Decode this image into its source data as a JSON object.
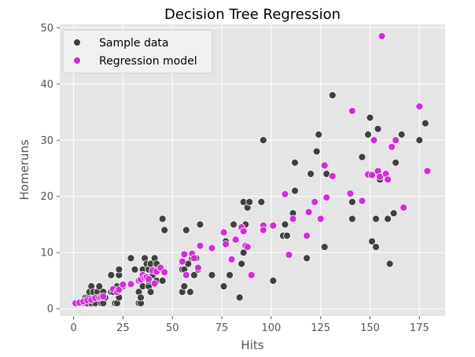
{
  "chart_data": {
    "type": "scatter",
    "title": "Decision Tree Regression",
    "xlabel": "Hits",
    "ylabel": "Homeruns",
    "xlim": [
      -7,
      188
    ],
    "ylim": [
      -1.3,
      50.6
    ],
    "x_ticks": [
      0,
      25,
      50,
      75,
      100,
      125,
      150,
      175
    ],
    "y_ticks": [
      0,
      10,
      20,
      30,
      40,
      50
    ],
    "grid": true,
    "legend_position": "top-left",
    "series": [
      {
        "name": "Sample data",
        "color": "#404040",
        "points": [
          [
            1,
            1
          ],
          [
            2,
            1
          ],
          [
            3,
            1
          ],
          [
            4,
            1
          ],
          [
            5,
            1
          ],
          [
            6,
            1
          ],
          [
            6,
            2
          ],
          [
            7,
            1
          ],
          [
            7,
            2
          ],
          [
            8,
            2
          ],
          [
            8,
            3
          ],
          [
            9,
            1
          ],
          [
            9,
            4
          ],
          [
            10,
            2
          ],
          [
            10,
            3
          ],
          [
            11,
            1
          ],
          [
            12,
            2
          ],
          [
            12,
            3
          ],
          [
            13,
            4
          ],
          [
            14,
            1
          ],
          [
            14,
            2
          ],
          [
            15,
            1
          ],
          [
            15,
            3
          ],
          [
            16,
            2
          ],
          [
            19,
            3
          ],
          [
            19,
            6
          ],
          [
            20,
            3
          ],
          [
            21,
            1
          ],
          [
            22,
            1
          ],
          [
            22,
            4
          ],
          [
            23,
            2
          ],
          [
            23,
            6
          ],
          [
            23,
            7
          ],
          [
            25,
            4
          ],
          [
            29,
            9
          ],
          [
            31,
            7
          ],
          [
            33,
            1
          ],
          [
            33,
            3
          ],
          [
            34,
            1
          ],
          [
            34,
            2
          ],
          [
            35,
            4
          ],
          [
            35,
            6
          ],
          [
            35,
            7
          ],
          [
            36,
            9
          ],
          [
            37,
            8
          ],
          [
            38,
            4
          ],
          [
            38,
            5
          ],
          [
            38,
            7
          ],
          [
            39,
            3
          ],
          [
            39,
            8
          ],
          [
            40,
            6
          ],
          [
            41,
            7
          ],
          [
            41,
            9
          ],
          [
            42,
            5
          ],
          [
            42,
            8
          ],
          [
            45,
            5
          ],
          [
            45,
            16
          ],
          [
            46,
            14
          ],
          [
            55,
            3
          ],
          [
            55,
            7
          ],
          [
            56,
            4
          ],
          [
            56,
            7
          ],
          [
            57,
            14
          ],
          [
            58,
            8
          ],
          [
            59,
            3
          ],
          [
            60,
            9
          ],
          [
            61,
            6
          ],
          [
            62,
            9
          ],
          [
            63,
            7
          ],
          [
            64,
            15
          ],
          [
            70,
            6
          ],
          [
            76,
            4
          ],
          [
            77,
            12
          ],
          [
            79,
            6
          ],
          [
            81,
            15
          ],
          [
            84,
            2
          ],
          [
            85,
            8
          ],
          [
            86,
            10
          ],
          [
            86,
            19
          ],
          [
            87,
            15
          ],
          [
            88,
            18
          ],
          [
            89,
            19
          ],
          [
            95,
            19
          ],
          [
            96,
            30
          ],
          [
            101,
            5
          ],
          [
            106,
            13
          ],
          [
            107,
            15
          ],
          [
            108,
            13
          ],
          [
            111,
            17
          ],
          [
            112,
            21
          ],
          [
            112,
            26
          ],
          [
            118,
            9
          ],
          [
            120,
            24
          ],
          [
            123,
            28
          ],
          [
            124,
            31
          ],
          [
            127,
            11
          ],
          [
            128,
            24
          ],
          [
            131,
            38
          ],
          [
            141,
            16
          ],
          [
            141,
            19
          ],
          [
            146,
            27
          ],
          [
            149,
            31
          ],
          [
            150,
            34
          ],
          [
            151,
            12
          ],
          [
            153,
            11
          ],
          [
            153,
            16
          ],
          [
            154,
            32
          ],
          [
            155,
            23
          ],
          [
            159,
            16
          ],
          [
            160,
            8
          ],
          [
            162,
            17
          ],
          [
            163,
            26
          ],
          [
            166,
            31
          ],
          [
            175,
            30
          ],
          [
            178,
            33
          ]
        ]
      },
      {
        "name": "Regression model",
        "color": "#d42cd8",
        "points": [
          [
            1,
            1
          ],
          [
            3,
            1.1
          ],
          [
            5,
            1.3
          ],
          [
            7,
            1.5
          ],
          [
            9,
            1.6
          ],
          [
            11,
            1.9
          ],
          [
            13,
            2
          ],
          [
            14,
            2.1
          ],
          [
            15,
            2.2
          ],
          [
            20,
            3.5
          ],
          [
            22,
            3
          ],
          [
            23,
            3.4
          ],
          [
            25,
            4.3
          ],
          [
            29,
            4.4
          ],
          [
            33,
            5
          ],
          [
            34,
            5.2
          ],
          [
            35,
            6
          ],
          [
            36,
            5.5
          ],
          [
            37,
            5.6
          ],
          [
            38,
            5.3
          ],
          [
            40,
            6.8
          ],
          [
            41,
            4.5
          ],
          [
            42,
            6.6
          ],
          [
            44,
            7.3
          ],
          [
            46,
            6.5
          ],
          [
            55,
            8.4
          ],
          [
            56,
            9.7
          ],
          [
            57,
            6
          ],
          [
            60,
            9.8
          ],
          [
            61,
            9
          ],
          [
            63,
            7.3
          ],
          [
            64,
            11.2
          ],
          [
            70,
            10.8
          ],
          [
            76,
            13.6
          ],
          [
            77,
            11.5
          ],
          [
            80,
            8.8
          ],
          [
            82,
            12.3
          ],
          [
            85,
            14.5
          ],
          [
            86,
            13.8
          ],
          [
            87,
            11.2
          ],
          [
            88,
            11
          ],
          [
            90,
            6
          ],
          [
            96,
            14.8
          ],
          [
            96,
            14
          ],
          [
            101,
            14.8
          ],
          [
            107,
            20.4
          ],
          [
            109,
            9.6
          ],
          [
            111,
            16
          ],
          [
            118,
            13
          ],
          [
            119,
            17.2
          ],
          [
            122,
            19
          ],
          [
            125,
            16
          ],
          [
            127,
            25.5
          ],
          [
            128,
            19.8
          ],
          [
            131,
            23.6
          ],
          [
            140,
            20.5
          ],
          [
            141,
            35.2
          ],
          [
            146,
            19.2
          ],
          [
            149,
            23.9
          ],
          [
            151,
            23.8
          ],
          [
            152,
            30
          ],
          [
            154,
            24.5
          ],
          [
            155,
            23.5
          ],
          [
            156,
            48.5
          ],
          [
            158,
            24
          ],
          [
            159,
            23
          ],
          [
            161,
            28.8
          ],
          [
            163,
            30
          ],
          [
            167,
            18
          ],
          [
            175,
            36
          ],
          [
            179,
            24.5
          ]
        ]
      }
    ]
  }
}
